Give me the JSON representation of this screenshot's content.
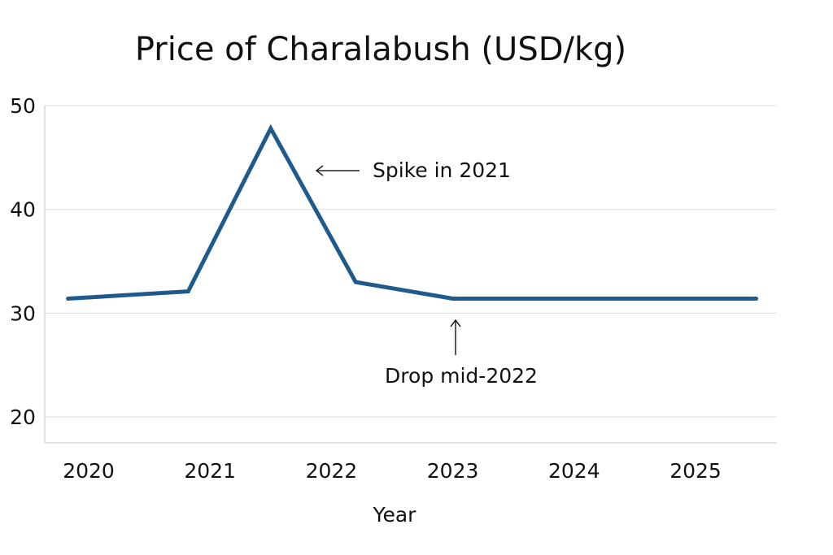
{
  "chart_data": {
    "type": "line",
    "title": "Price of Charalabush (USD/kg)",
    "xlabel": "Year",
    "ylabel": "",
    "x_ticks": [
      "2020",
      "2021",
      "2022",
      "2023",
      "2024",
      "2025"
    ],
    "y_ticks": [
      20,
      30,
      40,
      50
    ],
    "ylim": [
      17.5,
      50
    ],
    "xlim": [
      2019.83,
      2025.5
    ],
    "grid": true,
    "series": [
      {
        "color": "#1f5a8c",
        "points": [
          {
            "x": 2019.83,
            "y": 31.4
          },
          {
            "x": 2020.82,
            "y": 32.1
          },
          {
            "x": 2021.5,
            "y": 47.8
          },
          {
            "x": 2022.2,
            "y": 33.0
          },
          {
            "x": 2023.0,
            "y": 31.4
          },
          {
            "x": 2025.5,
            "y": 31.4
          }
        ]
      }
    ],
    "annotations": [
      {
        "text": "Spike in 2021",
        "arrow": "left"
      },
      {
        "text": "Drop mid-2022",
        "arrow": "up"
      }
    ]
  }
}
